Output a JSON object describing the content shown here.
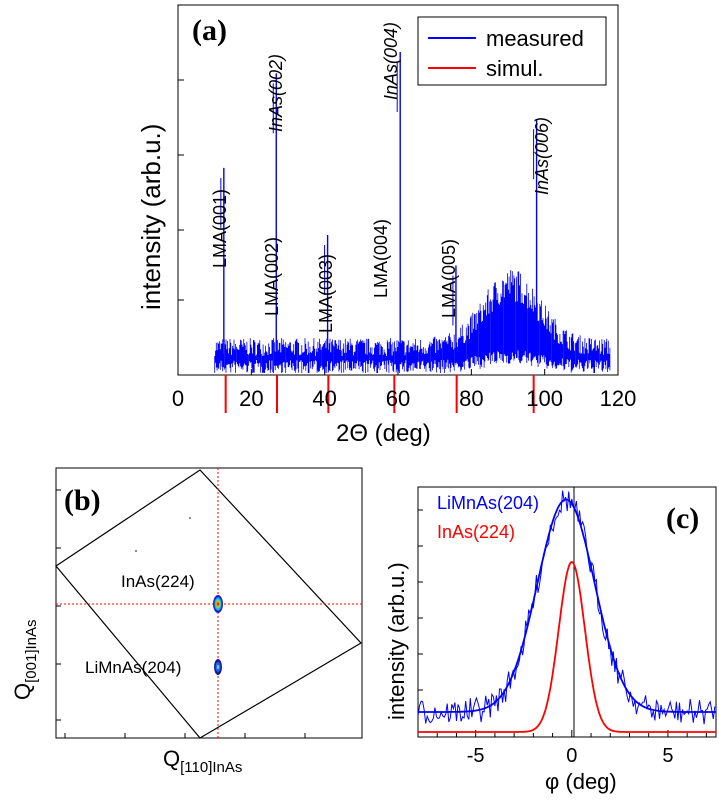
{
  "colors": {
    "measured": "#0000ff",
    "simulated": "#ff0000",
    "axis": "#000000",
    "crosshair": "#ff0000"
  },
  "chart_data": [
    {
      "panel": "(a)",
      "type": "line",
      "xlabel": "2Θ   (deg)",
      "ylabel": "intensity   (arb.u.)",
      "xlim": [
        0,
        120
      ],
      "x_ticks": [
        "0",
        "20",
        "40",
        "60",
        "80",
        "100",
        "120"
      ],
      "y_scale": "log (unlabeled)",
      "legend": {
        "position": "top-right",
        "entries": [
          "measured",
          "simul."
        ]
      },
      "series": [
        {
          "name": "measured",
          "color": "#0000ff",
          "peaks": [
            {
              "x": 12.5,
              "rel_height": 0.62
            },
            {
              "x": 26.8,
              "rel_height": 0.93
            },
            {
              "x": 40.8,
              "rel_height": 0.4
            },
            {
              "x": 60.6,
              "rel_height": 1.0
            },
            {
              "x": 75.8,
              "rel_height": 0.3
            },
            {
              "x": 97.8,
              "rel_height": 0.78
            }
          ],
          "broad_hump": {
            "center": 91,
            "width": 10,
            "rel_height": 0.26
          },
          "noise_range": [
            10,
            118
          ]
        },
        {
          "name": "simul.",
          "color": "#ff0000",
          "tick_positions": [
            13,
            27,
            41,
            59,
            76,
            97
          ]
        }
      ],
      "annotations": {
        "lma": [
          {
            "label": "LMA(001)",
            "x": 12.5
          },
          {
            "label": "LMA(002)",
            "x": 26.8
          },
          {
            "label": "LMA(003)",
            "x": 40.8
          },
          {
            "label": "LMA(004)",
            "x": 60.6
          },
          {
            "label": "LMA(005)",
            "x": 75.8
          }
        ],
        "inas": [
          {
            "label": "InAs(002)",
            "x": 26.8
          },
          {
            "label": "InAs(004)",
            "x": 60.6
          },
          {
            "label": "InAs(006)",
            "x": 97.8
          }
        ]
      }
    },
    {
      "panel": "(b)",
      "type": "heatmap",
      "xlabel": "Q[110]InAs",
      "ylabel": "Q[001]InAs",
      "labels": [
        "InAs(224)",
        "LiMnAs(204)"
      ],
      "spots": [
        {
          "name": "InAs(224)",
          "x_frac": 0.6,
          "y_frac": 0.46
        },
        {
          "name": "LiMnAs(204)",
          "x_frac": 0.6,
          "y_frac": 0.76
        }
      ]
    },
    {
      "panel": "(c)",
      "type": "line",
      "xlabel": "φ   (deg)",
      "ylabel": "intensity   (arb.u.)",
      "xlim": [
        -8,
        7.5
      ],
      "x_ticks": [
        "-5",
        "0",
        "5"
      ],
      "legend": {
        "position": "top-left",
        "entries": [
          "LiMnAs(204)",
          "InAs(224)"
        ]
      },
      "series": [
        {
          "name": "LiMnAs(204)",
          "color": "#0000ff",
          "center": -0.3,
          "fwhm": 3.5,
          "rel_height": 0.85,
          "baseline": 0.1
        },
        {
          "name": "InAs(224)",
          "color": "#ff0000",
          "center": 0.0,
          "fwhm": 1.6,
          "rel_height": 0.68,
          "baseline": 0.02
        }
      ]
    }
  ],
  "labels": {
    "a": "(a)",
    "b": "(b)",
    "c": "(c)",
    "a_xlabel": "2Θ   (deg)",
    "a_ylabel": "intensity   (arb.u.)",
    "a_legend_measured": "measured",
    "a_legend_simul": "simul.",
    "b_label_inas": "InAs(224)",
    "b_label_limnas": "LiMnAs(204)",
    "b_xlabel_q": "Q",
    "b_xlabel_sub": "[110]InAs",
    "b_ylabel_q": "Q",
    "b_ylabel_sub": "[001]InAs",
    "c_xlabel": "φ   (deg)",
    "c_ylabel": "intensity   (arb.u.)",
    "c_legend_limnas": "LiMnAs(204)",
    "c_legend_inas": "InAs(224)"
  }
}
